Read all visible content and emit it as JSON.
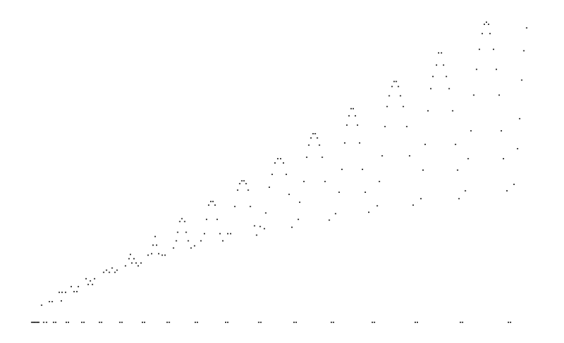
{
  "chart_data": {
    "type": "scatter",
    "title": "",
    "xlabel": "",
    "ylabel": "",
    "grid": false,
    "legend": "none",
    "xlim": [
      0,
      800
    ],
    "ylim": [
      0,
      480
    ],
    "series": [
      {
        "color": "#000000",
        "points": [
          [
            45,
            451
          ],
          [
            47,
            451
          ],
          [
            49,
            451
          ],
          [
            51,
            451
          ],
          [
            53,
            451
          ],
          [
            55,
            451
          ],
          [
            62,
            451
          ],
          [
            66,
            451
          ],
          [
            76,
            451
          ],
          [
            79,
            451
          ],
          [
            94,
            451
          ],
          [
            97,
            451
          ],
          [
            116,
            451
          ],
          [
            119,
            451
          ],
          [
            141,
            451
          ],
          [
            144,
            451
          ],
          [
            170,
            451
          ],
          [
            173,
            451
          ],
          [
            202,
            451
          ],
          [
            205,
            451
          ],
          [
            237,
            451
          ],
          [
            240,
            451
          ],
          [
            277,
            451
          ],
          [
            280,
            451
          ],
          [
            320,
            451
          ],
          [
            323,
            451
          ],
          [
            367,
            451
          ],
          [
            370,
            451
          ],
          [
            417,
            451
          ],
          [
            420,
            451
          ],
          [
            470,
            451
          ],
          [
            473,
            451
          ],
          [
            528,
            451
          ],
          [
            531,
            451
          ],
          [
            589,
            451
          ],
          [
            592,
            451
          ],
          [
            653,
            451
          ],
          [
            656,
            451
          ],
          [
            721,
            451
          ],
          [
            724,
            451
          ],
          [
            59,
            427
          ],
          [
            70,
            422
          ],
          [
            74,
            422
          ],
          [
            84,
            409
          ],
          [
            88,
            409
          ],
          [
            87,
            421
          ],
          [
            93,
            409
          ],
          [
            101,
            401
          ],
          [
            105,
            408
          ],
          [
            109,
            408
          ],
          [
            111,
            401
          ],
          [
            122,
            390
          ],
          [
            125,
            398
          ],
          [
            128,
            393
          ],
          [
            131,
            398
          ],
          [
            134,
            390
          ],
          [
            147,
            381
          ],
          [
            151,
            378
          ],
          [
            155,
            381
          ],
          [
            159,
            375
          ],
          [
            163,
            381
          ],
          [
            166,
            378
          ],
          [
            178,
            372
          ],
          [
            183,
            362
          ],
          [
            185,
            356
          ],
          [
            187,
            368
          ],
          [
            190,
            362
          ],
          [
            193,
            368
          ],
          [
            196,
            372
          ],
          [
            200,
            368
          ],
          [
            210,
            357
          ],
          [
            215,
            355
          ],
          [
            217,
            343
          ],
          [
            220,
            331
          ],
          [
            222,
            343
          ],
          [
            225,
            355
          ],
          [
            230,
            357
          ],
          [
            234,
            357
          ],
          [
            246,
            347
          ],
          [
            250,
            337
          ],
          [
            252,
            325
          ],
          [
            255,
            310
          ],
          [
            258,
            306
          ],
          [
            262,
            310
          ],
          [
            264,
            325
          ],
          [
            267,
            337
          ],
          [
            271,
            347
          ],
          [
            276,
            344
          ],
          [
            285,
            337
          ],
          [
            290,
            327
          ],
          [
            293,
            307
          ],
          [
            296,
            287
          ],
          [
            299,
            282
          ],
          [
            302,
            282
          ],
          [
            305,
            287
          ],
          [
            308,
            307
          ],
          [
            312,
            327
          ],
          [
            316,
            337
          ],
          [
            323,
            327
          ],
          [
            327,
            327
          ],
          [
            333,
            289
          ],
          [
            337,
            266
          ],
          [
            340,
            257
          ],
          [
            343,
            253
          ],
          [
            346,
            253
          ],
          [
            349,
            257
          ],
          [
            352,
            266
          ],
          [
            355,
            289
          ],
          [
            361,
            316
          ],
          [
            364,
            329
          ],
          [
            369,
            317
          ],
          [
            375,
            320
          ],
          [
            377,
            298
          ],
          [
            382,
            262
          ],
          [
            386,
            244
          ],
          [
            390,
            228
          ],
          [
            394,
            222
          ],
          [
            398,
            222
          ],
          [
            402,
            228
          ],
          [
            406,
            244
          ],
          [
            410,
            272
          ],
          [
            414,
            318
          ],
          [
            423,
            307
          ],
          [
            425,
            283
          ],
          [
            431,
            254
          ],
          [
            435,
            220
          ],
          [
            438,
            203
          ],
          [
            441,
            193
          ],
          [
            444,
            187
          ],
          [
            447,
            187
          ],
          [
            450,
            193
          ],
          [
            453,
            203
          ],
          [
            457,
            220
          ],
          [
            461,
            254
          ],
          [
            467,
            308
          ],
          [
            476,
            299
          ],
          [
            481,
            269
          ],
          [
            485,
            237
          ],
          [
            489,
            200
          ],
          [
            492,
            175
          ],
          [
            495,
            162
          ],
          [
            498,
            152
          ],
          [
            501,
            152
          ],
          [
            504,
            162
          ],
          [
            507,
            175
          ],
          [
            510,
            200
          ],
          [
            514,
            237
          ],
          [
            518,
            269
          ],
          [
            523,
            297
          ],
          [
            535,
            288
          ],
          [
            538,
            254
          ],
          [
            542,
            218
          ],
          [
            546,
            177
          ],
          [
            549,
            149
          ],
          [
            552,
            134
          ],
          [
            556,
            121
          ],
          [
            559,
            114
          ],
          [
            562,
            114
          ],
          [
            565,
            121
          ],
          [
            568,
            134
          ],
          [
            572,
            149
          ],
          [
            577,
            177
          ],
          [
            581,
            218
          ],
          [
            586,
            287
          ],
          [
            597,
            278
          ],
          [
            600,
            238
          ],
          [
            603,
            202
          ],
          [
            607,
            155
          ],
          [
            611,
            124
          ],
          [
            614,
            107
          ],
          [
            619,
            91
          ],
          [
            622,
            74
          ],
          [
            626,
            74
          ],
          [
            629,
            91
          ],
          [
            633,
            107
          ],
          [
            637,
            124
          ],
          [
            642,
            155
          ],
          [
            646,
            202
          ],
          [
            649,
            238
          ],
          [
            651,
            278
          ],
          [
            660,
            267
          ],
          [
            664,
            222
          ],
          [
            668,
            183
          ],
          [
            672,
            133
          ],
          [
            676,
            97
          ],
          [
            680,
            69
          ],
          [
            684,
            47
          ],
          [
            687,
            34
          ],
          [
            690,
            31
          ],
          [
            693,
            34
          ],
          [
            695,
            47
          ],
          [
            700,
            69
          ],
          [
            704,
            97
          ],
          [
            708,
            133
          ],
          [
            711,
            183
          ],
          [
            714,
            222
          ],
          [
            719,
            267
          ],
          [
            729,
            258
          ],
          [
            734,
            208
          ],
          [
            737,
            166
          ],
          [
            740,
            112
          ],
          [
            743,
            71
          ],
          [
            747,
            39
          ]
        ]
      }
    ]
  }
}
